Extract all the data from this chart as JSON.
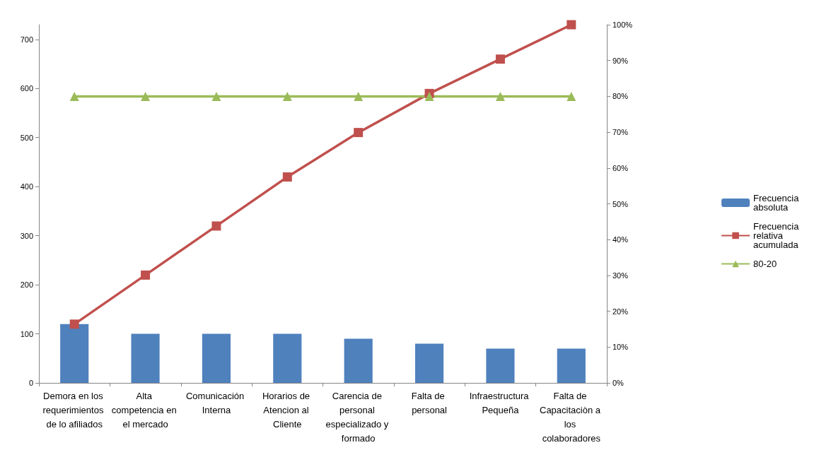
{
  "chart_data": {
    "type": "bar",
    "categories": [
      "Demora en los requerimientos de lo afiliados",
      "Alta competencia en el mercado",
      "Comunicación Interna",
      "Horarios de Atencion al Cliente",
      "Carencia de personal especializado y formado",
      "Falta de personal",
      "Infraestructura Pequeña",
      "Falta de Capacitaciòn a los colaboradores"
    ],
    "series": [
      {
        "name": "Frecuencia absoluta",
        "color": "#4f81bd",
        "values": [
          120,
          100,
          100,
          100,
          90,
          80,
          70,
          70
        ]
      },
      {
        "name": "Frecuencia relativa acumulada",
        "type": "line",
        "axis": "y2",
        "marker": "square",
        "color": "#c0504d",
        "values": [
          16.4,
          30.1,
          43.8,
          57.5,
          69.9,
          80.8,
          90.4,
          100
        ]
      },
      {
        "name": "80-20",
        "type": "line",
        "axis": "y2",
        "marker": "triangle",
        "color": "#9bbb59",
        "values": [
          80,
          80,
          80,
          80,
          80,
          80,
          80,
          80
        ]
      }
    ],
    "ylim": [
      0,
      730
    ],
    "yticks": [
      0,
      100,
      200,
      300,
      400,
      500,
      600,
      700
    ],
    "y2lim": [
      0,
      100
    ],
    "y2ticks": [
      {
        "value": 0,
        "label": "0%"
      },
      {
        "value": 10,
        "label": "10%"
      },
      {
        "value": 20,
        "label": "20%"
      },
      {
        "value": 30,
        "label": "30%"
      },
      {
        "value": 40,
        "label": "40%"
      },
      {
        "value": 50,
        "label": "50%"
      },
      {
        "value": 60,
        "label": "60%"
      },
      {
        "value": 70,
        "label": "70%"
      },
      {
        "value": 80,
        "label": "80%"
      },
      {
        "value": 90,
        "label": "90%"
      },
      {
        "value": 100,
        "label": "100%"
      }
    ],
    "grid": false,
    "legend": "right"
  }
}
